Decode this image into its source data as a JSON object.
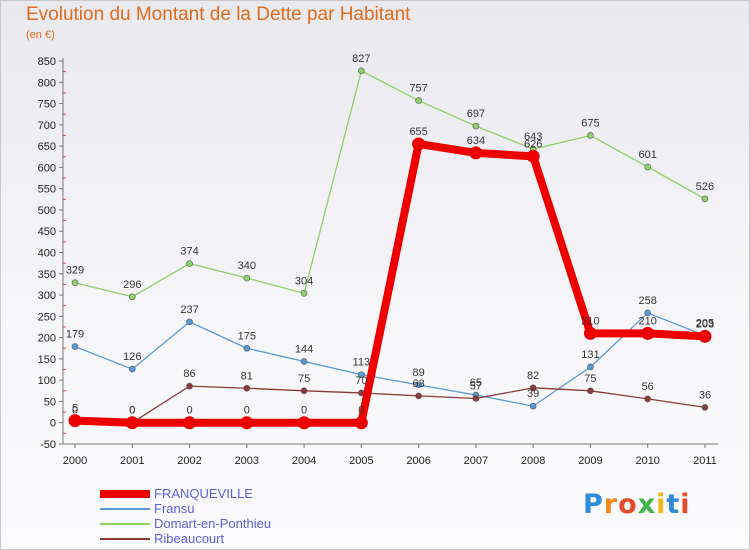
{
  "chart_data": {
    "type": "line",
    "title": "Evolution du Montant de la Dette par Habitant",
    "subtitle": "(en €)",
    "categories": [
      "2000",
      "2001",
      "2002",
      "2003",
      "2004",
      "2005",
      "2006",
      "2007",
      "2008",
      "2009",
      "2010",
      "2011"
    ],
    "ylim": [
      -50,
      850
    ],
    "yticks": [
      -50,
      0,
      50,
      100,
      150,
      200,
      250,
      300,
      350,
      400,
      450,
      500,
      550,
      600,
      650,
      700,
      750,
      800,
      850
    ],
    "grid": false,
    "legend_position": "bottom-left",
    "series": [
      {
        "name": "FRANQUEVILLE",
        "color": "#ee0000",
        "values": [
          5,
          0,
          0,
          0,
          0,
          0,
          655,
          634,
          626,
          210,
          210,
          203
        ],
        "labels": [
          "5",
          "0",
          "0",
          "0",
          "0",
          "0",
          "655",
          "634",
          "626",
          "210",
          "210",
          "203"
        ]
      },
      {
        "name": "Fransu",
        "color": "#5b9bd5",
        "values": [
          179,
          126,
          237,
          175,
          144,
          113,
          89,
          65,
          39,
          131,
          258,
          205
        ],
        "labels": [
          "179",
          "126",
          "237",
          "175",
          "144",
          "113",
          "89",
          "65",
          "39",
          "131",
          "258",
          "205"
        ]
      },
      {
        "name": "Domart-en-Ponthieu",
        "color": "#8fd16a",
        "values": [
          329,
          296,
          374,
          340,
          304,
          827,
          757,
          697,
          643,
          675,
          601,
          526
        ],
        "labels": [
          "329",
          "296",
          "374",
          "340",
          "304",
          "827",
          "757",
          "697",
          "643",
          "675",
          "601",
          "526"
        ]
      },
      {
        "name": "Ribeaucourt",
        "color": "#8b3a3a",
        "values": [
          0,
          0,
          86,
          81,
          75,
          70,
          63,
          57,
          82,
          75,
          56,
          36
        ],
        "labels": [
          "0",
          "0",
          "86",
          "81",
          "75",
          "70",
          "63",
          "57",
          "82",
          "75",
          "56",
          "36"
        ]
      }
    ]
  },
  "logo": {
    "text": "Proxiti",
    "colors": [
      "#2e8bd8",
      "#f08a1c",
      "#e64b2b",
      "#3fb54b",
      "#f0b81c",
      "#2e8bd8",
      "#e64b2b"
    ]
  }
}
